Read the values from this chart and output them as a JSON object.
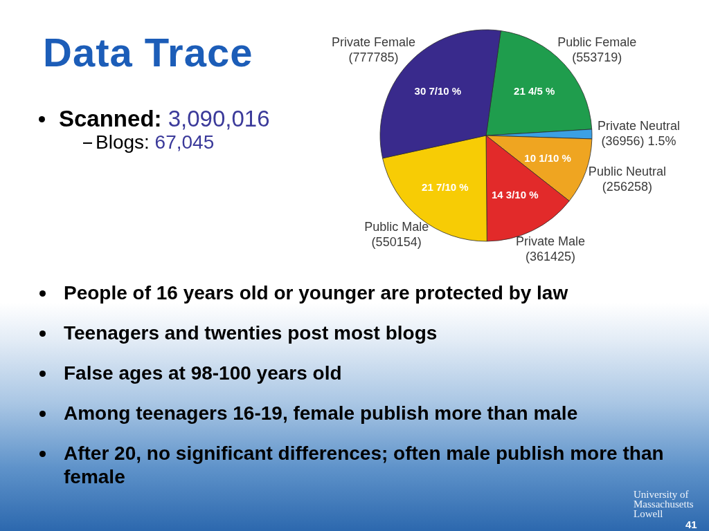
{
  "chart_data": {
    "type": "pie",
    "title": "Data Trace",
    "categories": [
      "Public Female",
      "Private Neutral",
      "Public Neutral",
      "Private Male",
      "Public Male",
      "Private Female"
    ],
    "values": [
      553719,
      36956,
      256258,
      361425,
      550154,
      777785
    ],
    "colors": [
      "#1f9d4d",
      "#3ca0e4",
      "#efa521",
      "#e22a2a",
      "#f7cc05",
      "#392a8c"
    ],
    "value_labels": [
      "(553719)",
      "(36956)",
      "(256258)",
      "(361425)",
      "(550154)",
      "(777785)"
    ],
    "annotations": [
      "Scanned: 3,090,016",
      "Blogs: 67,045",
      "People of 16 years old or younger are protected by law",
      "Teenagers and twenties post most blogs",
      "False ages at 98-100 years old",
      "Among teenagers 16-19, female publish more than male",
      "After 20, no significant differences; often male publish more than female",
      "University of Massachusetts Lowell",
      "41",
      {
        "text": "21 4/5 %",
        "x": "Public Female"
      },
      {
        "text": "1.5%",
        "x": "Private Neutral"
      },
      {
        "text": "10 1/10 %",
        "x": "Public Neutral"
      },
      {
        "text": "14 3/10 %",
        "x": "Private Male"
      },
      {
        "text": "21 7/10 %",
        "x": "Public Male"
      },
      {
        "text": "30 7/10 %",
        "x": "Private Female"
      }
    ]
  }
}
